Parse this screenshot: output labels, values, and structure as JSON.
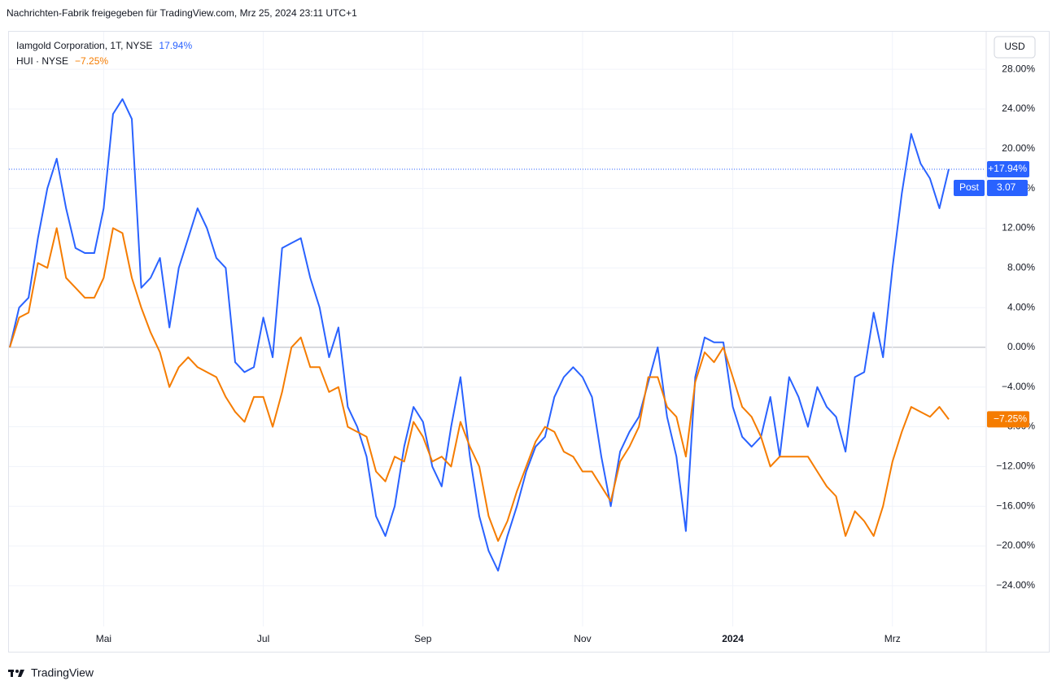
{
  "header": "Nachrichten-Fabrik freigegeben für TradingView.com, Mrz 25, 2024 23:11 UTC+1",
  "footer": "TradingView",
  "chart_data": {
    "type": "line",
    "currency": "USD",
    "categories": [
      null,
      null,
      null,
      null,
      null,
      null,
      null,
      null,
      null,
      null,
      "Mai",
      null,
      null,
      null,
      null,
      null,
      null,
      null,
      null,
      null,
      null,
      null,
      null,
      null,
      null,
      null,
      null,
      "Jul",
      null,
      null,
      null,
      null,
      null,
      null,
      null,
      null,
      null,
      null,
      null,
      null,
      null,
      null,
      null,
      null,
      "Sep",
      null,
      null,
      null,
      null,
      null,
      null,
      null,
      null,
      null,
      null,
      null,
      null,
      null,
      null,
      null,
      null,
      "Nov",
      null,
      null,
      null,
      null,
      null,
      null,
      null,
      null,
      null,
      null,
      null,
      null,
      null,
      null,
      null,
      "2024",
      null,
      null,
      null,
      null,
      null,
      null,
      null,
      null,
      null,
      null,
      null,
      null,
      null,
      null,
      null,
      null,
      "Mrz",
      null,
      null,
      null,
      null,
      null,
      null
    ],
    "series": [
      {
        "name": "Iamgold Corporation, 1T, NYSE",
        "color": "#2962ff",
        "legend_label": "17.94%",
        "axis_label": "+17.94%",
        "post_label": "Post",
        "post_price": "3.07",
        "values": [
          0,
          4,
          5,
          11,
          16,
          19,
          14,
          10,
          9.5,
          9.5,
          14,
          23.5,
          25,
          23,
          6,
          7,
          9,
          2,
          8,
          11,
          14,
          12,
          9,
          8,
          -1.5,
          -2.5,
          -2,
          3,
          -1,
          10,
          10.5,
          11,
          7,
          4,
          -1,
          2,
          -6,
          -8,
          -11,
          -17,
          -19,
          -16,
          -10,
          -6,
          -7.5,
          -12,
          -14,
          -8,
          -3,
          -11,
          -17,
          -20.5,
          -22.5,
          -19,
          -16,
          -12.5,
          -10,
          -9,
          -5,
          -3,
          -2,
          -3,
          -5,
          -11,
          -16,
          -10.5,
          -8.5,
          -7,
          -3.5,
          0,
          -7,
          -11,
          -18.5,
          -3,
          1,
          0.5,
          0.5,
          -6,
          -9,
          -10,
          -9,
          -5,
          -11,
          -3,
          -5,
          -8,
          -4,
          -6,
          -7,
          -10.5,
          -3,
          -2.5,
          3.5,
          -1,
          8,
          15.5,
          21.5,
          18.5,
          17,
          14,
          17.94
        ]
      },
      {
        "name": "HUI · NYSE",
        "color": "#f57c00",
        "legend_label": "−7.25%",
        "axis_label": "−7.25%",
        "values": [
          0,
          3,
          3.5,
          8.5,
          8,
          12,
          7,
          6,
          5,
          5,
          7,
          12,
          11.5,
          7,
          4,
          1.5,
          -0.5,
          -4,
          -2,
          -1,
          -2,
          -2.5,
          -3,
          -5,
          -6.5,
          -7.5,
          -5,
          -5,
          -8,
          -4.5,
          0,
          1,
          -2,
          -2,
          -4.5,
          -4,
          -8,
          -8.5,
          -9,
          -12.5,
          -13.5,
          -11,
          -11.5,
          -7.5,
          -9,
          -11.5,
          -11,
          -12,
          -7.5,
          -10,
          -12,
          -17,
          -19.5,
          -17.5,
          -14.5,
          -12,
          -9.5,
          -8,
          -8.5,
          -10.5,
          -11,
          -12.5,
          -12.5,
          -14,
          -15.5,
          -11.5,
          -10,
          -8,
          -3,
          -3,
          -6,
          -7,
          -11,
          -3.5,
          -0.5,
          -1.5,
          0,
          -3,
          -6,
          -7,
          -9,
          -12,
          -11,
          -11,
          -11,
          -11,
          -12.5,
          -14,
          -15,
          -19,
          -16.5,
          -17.5,
          -19,
          -16,
          -11.5,
          -8.5,
          -6,
          -6.5,
          -7,
          -6,
          -7.25
        ]
      }
    ],
    "ylim": [
      -27.7,
      31.7
    ],
    "yticks": [
      {
        "value": -24,
        "label": "−24.00%"
      },
      {
        "value": -20,
        "label": "−20.00%"
      },
      {
        "value": -16,
        "label": "−16.00%"
      },
      {
        "value": -12,
        "label": "−12.00%"
      },
      {
        "value": -8,
        "label": "−8.00%"
      },
      {
        "value": -4,
        "label": "−4.00%"
      },
      {
        "value": 0,
        "label": "0.00%"
      },
      {
        "value": 4,
        "label": "4.00%"
      },
      {
        "value": 8,
        "label": "8.00%"
      },
      {
        "value": 12,
        "label": "12.00%"
      },
      {
        "value": 16,
        "label": "16.00%"
      },
      {
        "value": 20,
        "label": "20.00%"
      },
      {
        "value": 24,
        "label": "24.00%"
      },
      {
        "value": 28,
        "label": "28.00%"
      }
    ],
    "grid": true
  }
}
